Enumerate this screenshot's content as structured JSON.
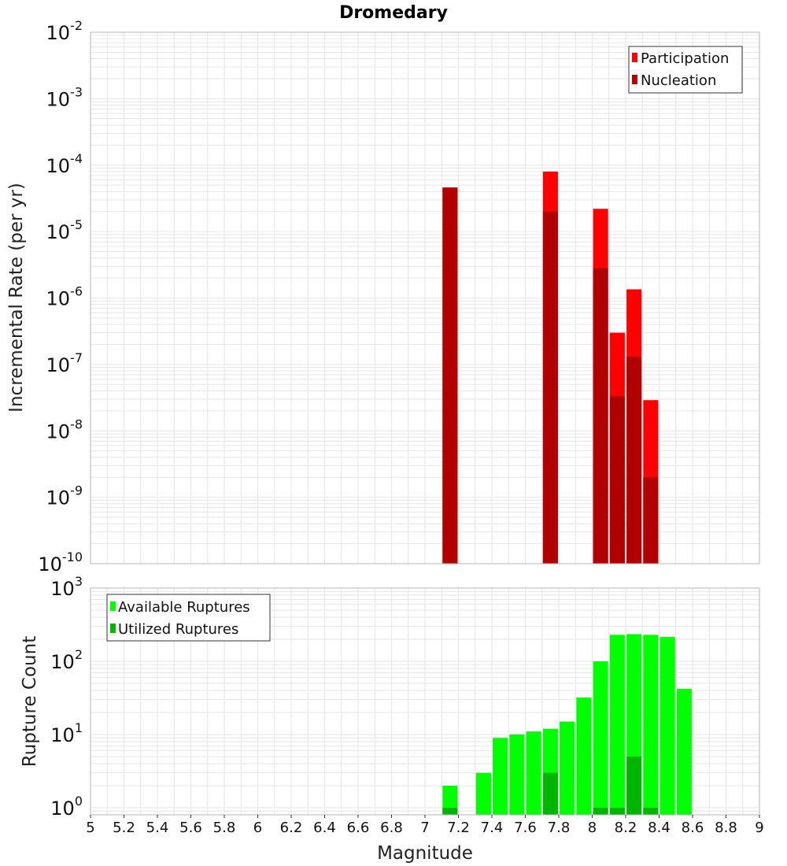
{
  "colors": {
    "participation": "#ff0000",
    "nucleation": "#b00000",
    "available": "#00ff00",
    "utilized": "#00b400",
    "grid": "#e6e6e6",
    "frame": "#b4b4b4"
  },
  "chart_data": [
    {
      "type": "bar",
      "title": "Dromedary",
      "xlabel": "",
      "ylabel": "Incremental Rate (per yr)",
      "yscale": "log",
      "ylim": [
        1e-10,
        0.01
      ],
      "xlim": [
        5,
        9
      ],
      "y_ticks": [
        {
          "base": "10",
          "exp": "-2"
        },
        {
          "base": "10",
          "exp": "-3"
        },
        {
          "base": "10",
          "exp": "-4"
        },
        {
          "base": "10",
          "exp": "-5"
        },
        {
          "base": "10",
          "exp": "-6"
        },
        {
          "base": "10",
          "exp": "-7"
        },
        {
          "base": "10",
          "exp": "-8"
        },
        {
          "base": "10",
          "exp": "-9"
        },
        {
          "base": "10",
          "exp": "-10"
        }
      ],
      "bar_width": 0.09,
      "legend": {
        "position": "top-right",
        "entries": [
          "Participation",
          "Nucleation"
        ]
      },
      "series": [
        {
          "name": "Participation",
          "x": [
            7.15,
            7.75,
            8.05,
            8.15,
            8.25,
            8.35
          ],
          "values": [
            4.6e-05,
            8e-05,
            2.2e-05,
            3e-07,
            1.35e-06,
            2.9e-08
          ]
        },
        {
          "name": "Nucleation",
          "x": [
            7.15,
            7.75,
            8.05,
            8.15,
            8.25,
            8.35
          ],
          "values": [
            4.6e-05,
            2e-05,
            2.8e-06,
            3.3e-08,
            1.3e-07,
            2e-09
          ]
        }
      ]
    },
    {
      "type": "bar",
      "title": "",
      "xlabel": "Magnitude",
      "ylabel": "Rupture Count",
      "yscale": "log",
      "ylim": [
        0.8,
        1000
      ],
      "xlim": [
        5,
        9
      ],
      "x_ticks": [
        "5",
        "5.2",
        "5.4",
        "5.6",
        "5.8",
        "6",
        "6.2",
        "6.4",
        "6.6",
        "6.8",
        "7",
        "7.2",
        "7.4",
        "7.6",
        "7.8",
        "8",
        "8.2",
        "8.4",
        "8.6",
        "8.8",
        "9"
      ],
      "y_ticks": [
        {
          "base": "10",
          "exp": "3"
        },
        {
          "base": "10",
          "exp": "2"
        },
        {
          "base": "10",
          "exp": "1"
        },
        {
          "base": "10",
          "exp": "0"
        }
      ],
      "bar_width": 0.09,
      "legend": {
        "position": "top-left",
        "entries": [
          "Available Ruptures",
          "Utilized Ruptures"
        ]
      },
      "series": [
        {
          "name": "Available Ruptures",
          "x": [
            7.15,
            7.35,
            7.45,
            7.55,
            7.65,
            7.75,
            7.85,
            7.95,
            8.05,
            8.15,
            8.25,
            8.35,
            8.45,
            8.55
          ],
          "values": [
            2,
            3,
            9,
            10,
            11,
            12,
            15,
            32,
            100,
            230,
            235,
            230,
            215,
            42
          ]
        },
        {
          "name": "Utilized Ruptures",
          "x": [
            7.15,
            7.75,
            8.05,
            8.15,
            8.25,
            8.35
          ],
          "values": [
            1,
            3,
            1,
            1,
            5,
            1
          ]
        }
      ]
    }
  ]
}
